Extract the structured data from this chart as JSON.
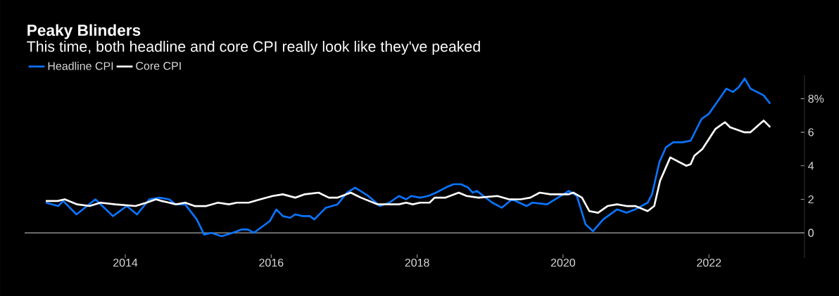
{
  "chart_data": {
    "type": "line",
    "title": "Peaky Blinders",
    "subtitle": "This time, both headline and core CPI really look like they've peaked",
    "xlim": [
      2012.62,
      2023.31
    ],
    "xticks": [
      2014,
      2016,
      2018,
      2020,
      2022
    ],
    "ylim": [
      -1.5,
      9.4
    ],
    "yticks": [
      0,
      2,
      4,
      6,
      {
        "value": 8,
        "label": "8%"
      }
    ],
    "grid": false,
    "legend": "top left",
    "marker": "none",
    "line_style": "solid",
    "series": [
      {
        "name": "Headline CPI",
        "color": "#0a74ff",
        "x": [
          2012.91,
          2013.08,
          2013.15,
          2013.33,
          2013.59,
          2013.83,
          2014.02,
          2014.16,
          2014.33,
          2014.47,
          2014.6,
          2014.69,
          2014.82,
          2014.98,
          2015.08,
          2015.18,
          2015.32,
          2015.47,
          2015.59,
          2015.68,
          2015.76,
          2015.98,
          2016.07,
          2016.16,
          2016.26,
          2016.33,
          2016.43,
          2016.53,
          2016.59,
          2016.75,
          2016.91,
          2017.04,
          2017.15,
          2017.33,
          2017.49,
          2017.62,
          2017.75,
          2017.85,
          2017.92,
          2018.04,
          2018.15,
          2018.26,
          2018.39,
          2018.5,
          2018.6,
          2018.7,
          2018.76,
          2018.82,
          2019.03,
          2019.16,
          2019.3,
          2019.5,
          2019.58,
          2019.78,
          2019.93,
          2020.08,
          2020.19,
          2020.31,
          2020.41,
          2020.55,
          2020.74,
          2020.87,
          2020.99,
          2021.16,
          2021.22,
          2021.32,
          2021.41,
          2021.51,
          2021.64,
          2021.75,
          2021.9,
          2022.0,
          2022.24,
          2022.33,
          2022.41,
          2022.49,
          2022.57,
          2022.75,
          2022.84
        ],
        "values": [
          1.8,
          1.6,
          1.9,
          1.1,
          2.0,
          1.0,
          1.6,
          1.1,
          2.0,
          2.1,
          2.0,
          1.7,
          1.7,
          0.8,
          -0.1,
          0.0,
          -0.2,
          0.0,
          0.2,
          0.2,
          0.0,
          0.7,
          1.4,
          1.0,
          0.9,
          1.1,
          1.0,
          1.0,
          0.8,
          1.5,
          1.7,
          2.4,
          2.7,
          2.2,
          1.6,
          1.8,
          2.2,
          2.0,
          2.2,
          2.1,
          2.2,
          2.4,
          2.7,
          2.9,
          2.9,
          2.7,
          2.4,
          2.5,
          1.8,
          1.5,
          2.0,
          1.6,
          1.8,
          1.7,
          2.1,
          2.5,
          2.2,
          0.5,
          0.1,
          0.8,
          1.4,
          1.2,
          1.4,
          1.8,
          2.3,
          4.2,
          5.1,
          5.4,
          5.4,
          5.5,
          6.8,
          7.1,
          8.6,
          8.4,
          8.7,
          9.2,
          8.6,
          8.2,
          7.7
        ]
      },
      {
        "name": "Core CPI",
        "color": "#ffffff",
        "x": [
          2012.91,
          2013.07,
          2013.17,
          2013.34,
          2013.51,
          2013.66,
          2013.86,
          2014.14,
          2014.29,
          2014.42,
          2014.5,
          2014.6,
          2014.69,
          2014.82,
          2014.95,
          2015.11,
          2015.27,
          2015.42,
          2015.53,
          2015.69,
          2015.85,
          2016.02,
          2016.16,
          2016.33,
          2016.46,
          2016.65,
          2016.79,
          2016.91,
          2017.09,
          2017.23,
          2017.46,
          2017.75,
          2017.85,
          2017.94,
          2018.04,
          2018.17,
          2018.24,
          2018.39,
          2018.57,
          2018.68,
          2018.84,
          2019.1,
          2019.26,
          2019.42,
          2019.55,
          2019.68,
          2019.83,
          2019.93,
          2020.08,
          2020.14,
          2020.26,
          2020.36,
          2020.48,
          2020.61,
          2020.74,
          2020.87,
          2020.99,
          2021.16,
          2021.25,
          2021.33,
          2021.47,
          2021.69,
          2021.75,
          2021.8,
          2021.91,
          2022.09,
          2022.22,
          2022.29,
          2022.48,
          2022.57,
          2022.75,
          2022.84
        ],
        "values": [
          1.9,
          1.9,
          2.0,
          1.7,
          1.6,
          1.8,
          1.7,
          1.6,
          1.8,
          2.0,
          1.9,
          1.8,
          1.7,
          1.8,
          1.6,
          1.6,
          1.8,
          1.7,
          1.8,
          1.8,
          2.0,
          2.2,
          2.3,
          2.1,
          2.3,
          2.4,
          2.1,
          2.1,
          2.4,
          2.1,
          1.7,
          1.7,
          1.8,
          1.7,
          1.8,
          1.8,
          2.1,
          2.1,
          2.4,
          2.2,
          2.1,
          2.2,
          2.0,
          2.0,
          2.1,
          2.4,
          2.3,
          2.3,
          2.3,
          2.4,
          2.1,
          1.3,
          1.2,
          1.6,
          1.7,
          1.6,
          1.6,
          1.3,
          1.6,
          3.1,
          4.5,
          4.0,
          4.1,
          4.6,
          5.0,
          6.2,
          6.6,
          6.3,
          6.0,
          6.0,
          6.7,
          6.3
        ]
      }
    ]
  }
}
